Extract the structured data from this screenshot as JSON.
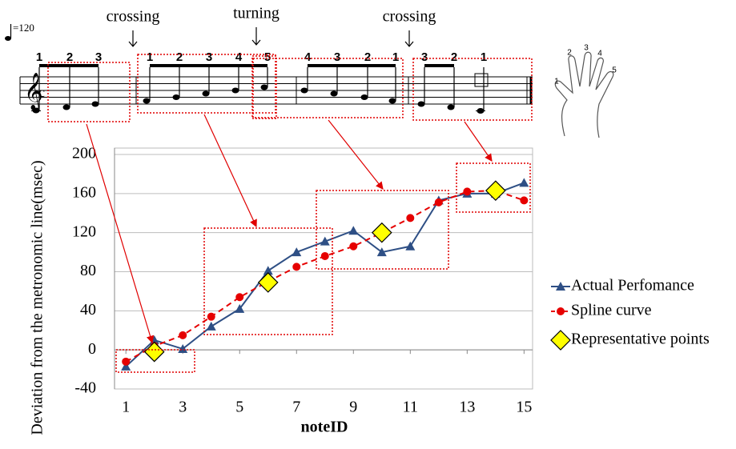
{
  "chart_data": {
    "type": "line",
    "y_label": "Deviation  from the metronomic  line(msec)",
    "x_label": "noteID",
    "x": [
      1,
      2,
      3,
      4,
      5,
      6,
      7,
      8,
      9,
      10,
      11,
      12,
      13,
      14,
      15
    ],
    "xlim": [
      0.6,
      15.3
    ],
    "xticks": [
      1,
      3,
      5,
      7,
      9,
      11,
      13,
      15
    ],
    "ylim": [
      -40,
      200
    ],
    "yticks": [
      -40,
      0,
      40,
      80,
      120,
      160,
      200
    ],
    "grid": true,
    "series": [
      {
        "name": "Actual Perfomance",
        "color": "#2e4f85",
        "marker": "triangle",
        "line": "solid",
        "values": [
          -17,
          10,
          1,
          24,
          42,
          81,
          100,
          111,
          122,
          100,
          106,
          153,
          160,
          160,
          171
        ]
      },
      {
        "name": "Spline curve",
        "color": "#e60000",
        "marker": "circle",
        "line": "dashed",
        "values": [
          -12,
          4,
          15,
          34,
          54,
          70,
          85,
          96,
          106,
          120,
          135,
          151,
          162,
          163,
          153
        ]
      },
      {
        "name": "Representative points",
        "color": "#ffff00",
        "marker": "diamond",
        "line": "none",
        "values": [
          null,
          -2,
          null,
          null,
          null,
          69,
          null,
          null,
          null,
          120,
          null,
          null,
          null,
          163,
          null
        ]
      }
    ]
  },
  "score": {
    "tempo": "=120",
    "annotations": [
      "crossing",
      "turning",
      "crossing"
    ],
    "fingering": [
      "1",
      "2",
      "3",
      "1",
      "2",
      "3",
      "4",
      "5",
      "4",
      "3",
      "2",
      "1",
      "3",
      "2",
      "1"
    ],
    "hand_fingers": [
      "1",
      "2",
      "3",
      "4",
      "5"
    ]
  }
}
